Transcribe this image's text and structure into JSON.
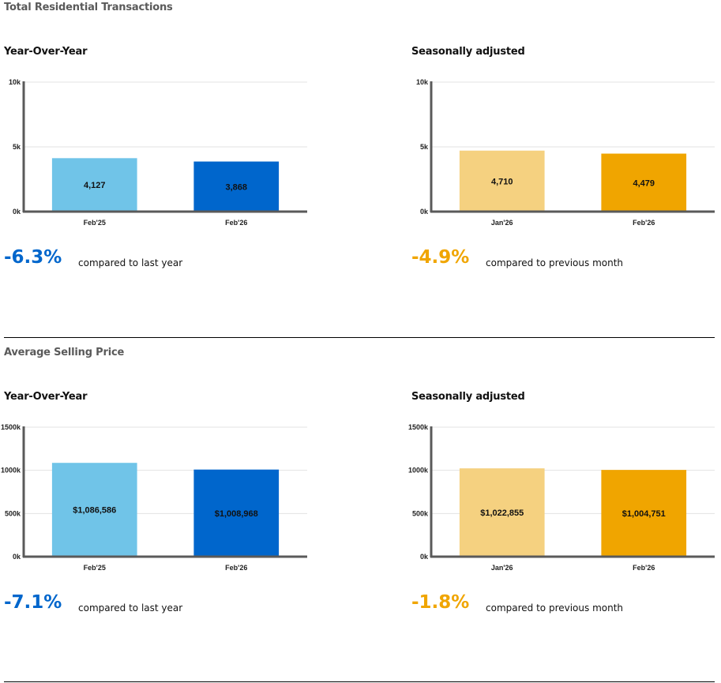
{
  "sections": [
    {
      "title": "Total Residential Transactions",
      "panels": [
        {
          "title": "Year-Over-Year",
          "change": "-6.3%",
          "change_label": "compared to last year",
          "change_color": "#0066cc"
        },
        {
          "title": "Seasonally adjusted",
          "change": "-4.9%",
          "change_label": "compared to previous month",
          "change_color": "#f0a500"
        }
      ]
    },
    {
      "title": "Average Selling Price",
      "panels": [
        {
          "title": "Year-Over-Year",
          "change": "-7.1%",
          "change_label": "compared to last year",
          "change_color": "#0066cc"
        },
        {
          "title": "Seasonally adjusted",
          "change": "-1.8%",
          "change_label": "compared to previous month",
          "change_color": "#f0a500"
        }
      ]
    }
  ],
  "chart_data": [
    {
      "type": "bar",
      "categories": [
        "Feb'25",
        "Feb'26"
      ],
      "values": [
        4127,
        3868
      ],
      "value_labels": [
        "4,127",
        "3,868"
      ],
      "colors": [
        "#70c4e8",
        "#0066cc"
      ],
      "ylim": [
        0,
        10000
      ],
      "yticks": [
        0,
        5000,
        10000
      ],
      "ytick_labels": [
        "0k",
        "5k",
        "10k"
      ],
      "grid": true
    },
    {
      "type": "bar",
      "categories": [
        "Jan'26",
        "Feb'26"
      ],
      "values": [
        4710,
        4479
      ],
      "value_labels": [
        "4,710",
        "4,479"
      ],
      "colors": [
        "#f5d180",
        "#f0a500"
      ],
      "ylim": [
        0,
        10000
      ],
      "yticks": [
        0,
        5000,
        10000
      ],
      "ytick_labels": [
        "0k",
        "5k",
        "10k"
      ],
      "grid": true
    },
    {
      "type": "bar",
      "categories": [
        "Feb'25",
        "Feb'26"
      ],
      "values": [
        1086586,
        1008968
      ],
      "value_labels": [
        "$1,086,586",
        "$1,008,968"
      ],
      "colors": [
        "#70c4e8",
        "#0066cc"
      ],
      "ylim": [
        0,
        1500000
      ],
      "yticks": [
        0,
        500000,
        1000000,
        1500000
      ],
      "ytick_labels": [
        "0k",
        "500k",
        "1000k",
        "1500k"
      ],
      "grid": true
    },
    {
      "type": "bar",
      "categories": [
        "Jan'26",
        "Feb'26"
      ],
      "values": [
        1022855,
        1004751
      ],
      "value_labels": [
        "$1,022,855",
        "$1,004,751"
      ],
      "colors": [
        "#f5d180",
        "#f0a500"
      ],
      "ylim": [
        0,
        1500000
      ],
      "yticks": [
        0,
        500000,
        1000000,
        1500000
      ],
      "ytick_labels": [
        "0k",
        "500k",
        "1000k",
        "1500k"
      ],
      "grid": true
    }
  ]
}
